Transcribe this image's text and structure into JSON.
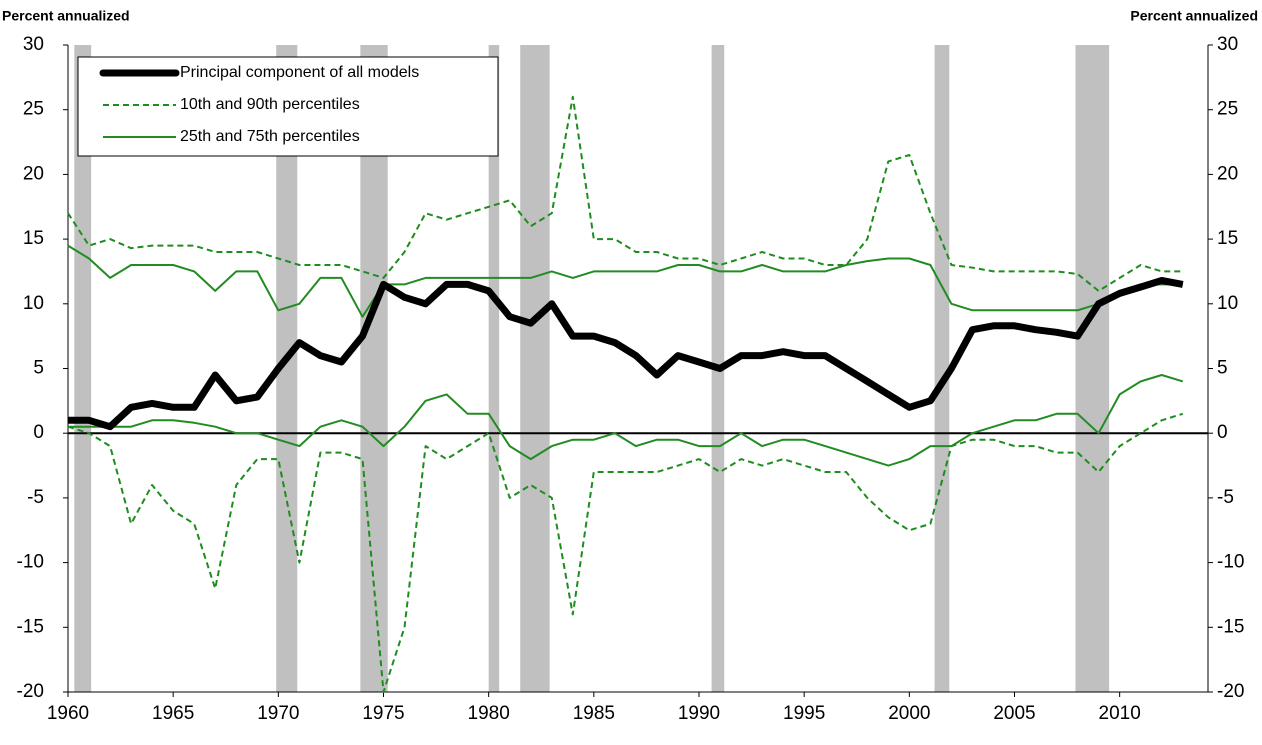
{
  "chart_data": {
    "type": "line",
    "y_label": "Percent annualized",
    "y2_label": "Percent annualized",
    "x": [
      1960,
      1961,
      1962,
      1963,
      1964,
      1965,
      1966,
      1967,
      1968,
      1969,
      1970,
      1971,
      1972,
      1973,
      1974,
      1975,
      1976,
      1977,
      1978,
      1979,
      1980,
      1981,
      1982,
      1983,
      1984,
      1985,
      1986,
      1987,
      1988,
      1989,
      1990,
      1991,
      1992,
      1993,
      1994,
      1995,
      1996,
      1997,
      1998,
      1999,
      2000,
      2001,
      2002,
      2003,
      2004,
      2005,
      2006,
      2007,
      2008,
      2009,
      2010,
      2011,
      2012,
      2013
    ],
    "series": [
      {
        "name": "Principal component of all models",
        "color": "#000000",
        "style": "thick",
        "values": [
          1,
          1,
          0.5,
          2,
          2.3,
          2,
          2,
          4.5,
          2.5,
          2.8,
          5,
          7,
          6,
          5.5,
          7.5,
          11.5,
          10.5,
          10,
          11.5,
          11.5,
          11,
          9,
          8.5,
          10,
          7.5,
          7.5,
          7,
          6,
          4.5,
          6,
          5.5,
          5,
          6,
          6,
          6.3,
          6,
          6,
          5,
          4,
          3,
          2,
          2.5,
          5,
          8,
          8.3,
          8.3,
          8,
          7.8,
          7.5,
          10,
          10.8,
          11.3,
          11.8,
          11.5
        ]
      },
      {
        "name": "10th and 90th percentiles",
        "color": "#1e8c1e",
        "style": "dashed",
        "lower": [
          0.5,
          0,
          -1,
          -7,
          -4,
          -6,
          -7,
          -12,
          -4,
          -2,
          -2,
          -10,
          -1.5,
          -1.5,
          -2,
          -20,
          -15,
          -1,
          -2,
          -1,
          0,
          -5,
          -4,
          -5,
          -14,
          -3,
          -3,
          -3,
          -3,
          -2.5,
          -2,
          -3,
          -2,
          -2.5,
          -2,
          -2.5,
          -3,
          -3,
          -5,
          -6.5,
          -7.5,
          -7,
          -1,
          -0.5,
          -0.5,
          -1,
          -1,
          -1.5,
          -1.5,
          -3,
          -1,
          0,
          1,
          1.5
        ],
        "upper": [
          17,
          14.5,
          15,
          14.3,
          14.5,
          14.5,
          14.5,
          14,
          14,
          14,
          13.5,
          13,
          13,
          13,
          12.5,
          12,
          14,
          17,
          16.5,
          17,
          17.5,
          18,
          16,
          17,
          26,
          15,
          15,
          14,
          14,
          13.5,
          13.5,
          13,
          13.5,
          14,
          13.5,
          13.5,
          13,
          13,
          15,
          21,
          21.5,
          17,
          13,
          12.8,
          12.5,
          12.5,
          12.5,
          12.5,
          12.3,
          11,
          12,
          13,
          12.5,
          12.5
        ]
      },
      {
        "name": "25th and 75th percentiles",
        "color": "#228b22",
        "style": "solid",
        "lower": [
          0.5,
          0.5,
          0.5,
          0.5,
          1,
          1,
          0.8,
          0.5,
          0,
          0,
          -0.5,
          -1,
          0.5,
          1,
          0.5,
          -1,
          0.5,
          2.5,
          3,
          1.5,
          1.5,
          -1,
          -2,
          -1,
          -0.5,
          -0.5,
          0,
          -1,
          -0.5,
          -0.5,
          -1,
          -1,
          0,
          -1,
          -0.5,
          -0.5,
          -1,
          -1.5,
          -2,
          -2.5,
          -2,
          -1,
          -1,
          0,
          0.5,
          1,
          1,
          1.5,
          1.5,
          0,
          3,
          4,
          4.5,
          4
        ],
        "upper": [
          14.5,
          13.5,
          12,
          13,
          13,
          13,
          12.5,
          11,
          12.5,
          12.5,
          9.5,
          10,
          12,
          12,
          9,
          11.5,
          11.5,
          12,
          12,
          12,
          12,
          12,
          12,
          12.5,
          12,
          12.5,
          12.5,
          12.5,
          12.5,
          13,
          13,
          12.5,
          12.5,
          13,
          12.5,
          12.5,
          12.5,
          13,
          13.3,
          13.5,
          13.5,
          13,
          10,
          9.5,
          9.5,
          9.5,
          9.5,
          9.5,
          9.5,
          10,
          11,
          11.5,
          11.5,
          11.5
        ]
      }
    ],
    "shaded_periods": [
      [
        1960.3,
        1961.1
      ],
      [
        1969.9,
        1970.9
      ],
      [
        1973.9,
        1975.2
      ],
      [
        1980.0,
        1980.5
      ],
      [
        1981.5,
        1982.9
      ],
      [
        1990.6,
        1991.2
      ],
      [
        2001.2,
        2001.9
      ],
      [
        2007.9,
        2009.5
      ]
    ],
    "shade_color": "#c0c0c0",
    "xlim": [
      1960,
      2014.2
    ],
    "xticks": [
      1960,
      1965,
      1970,
      1975,
      1980,
      1985,
      1990,
      1995,
      2000,
      2005,
      2010
    ],
    "ylim": [
      -20,
      30
    ],
    "yticks": [
      -20,
      -15,
      -10,
      -5,
      0,
      5,
      10,
      15,
      20,
      25,
      30
    ],
    "y2lim": [
      -20,
      30
    ],
    "y2ticks": [
      -20,
      -15,
      -10,
      -5,
      0,
      5,
      10,
      15,
      20,
      25,
      30
    ],
    "legend": "upper left"
  }
}
